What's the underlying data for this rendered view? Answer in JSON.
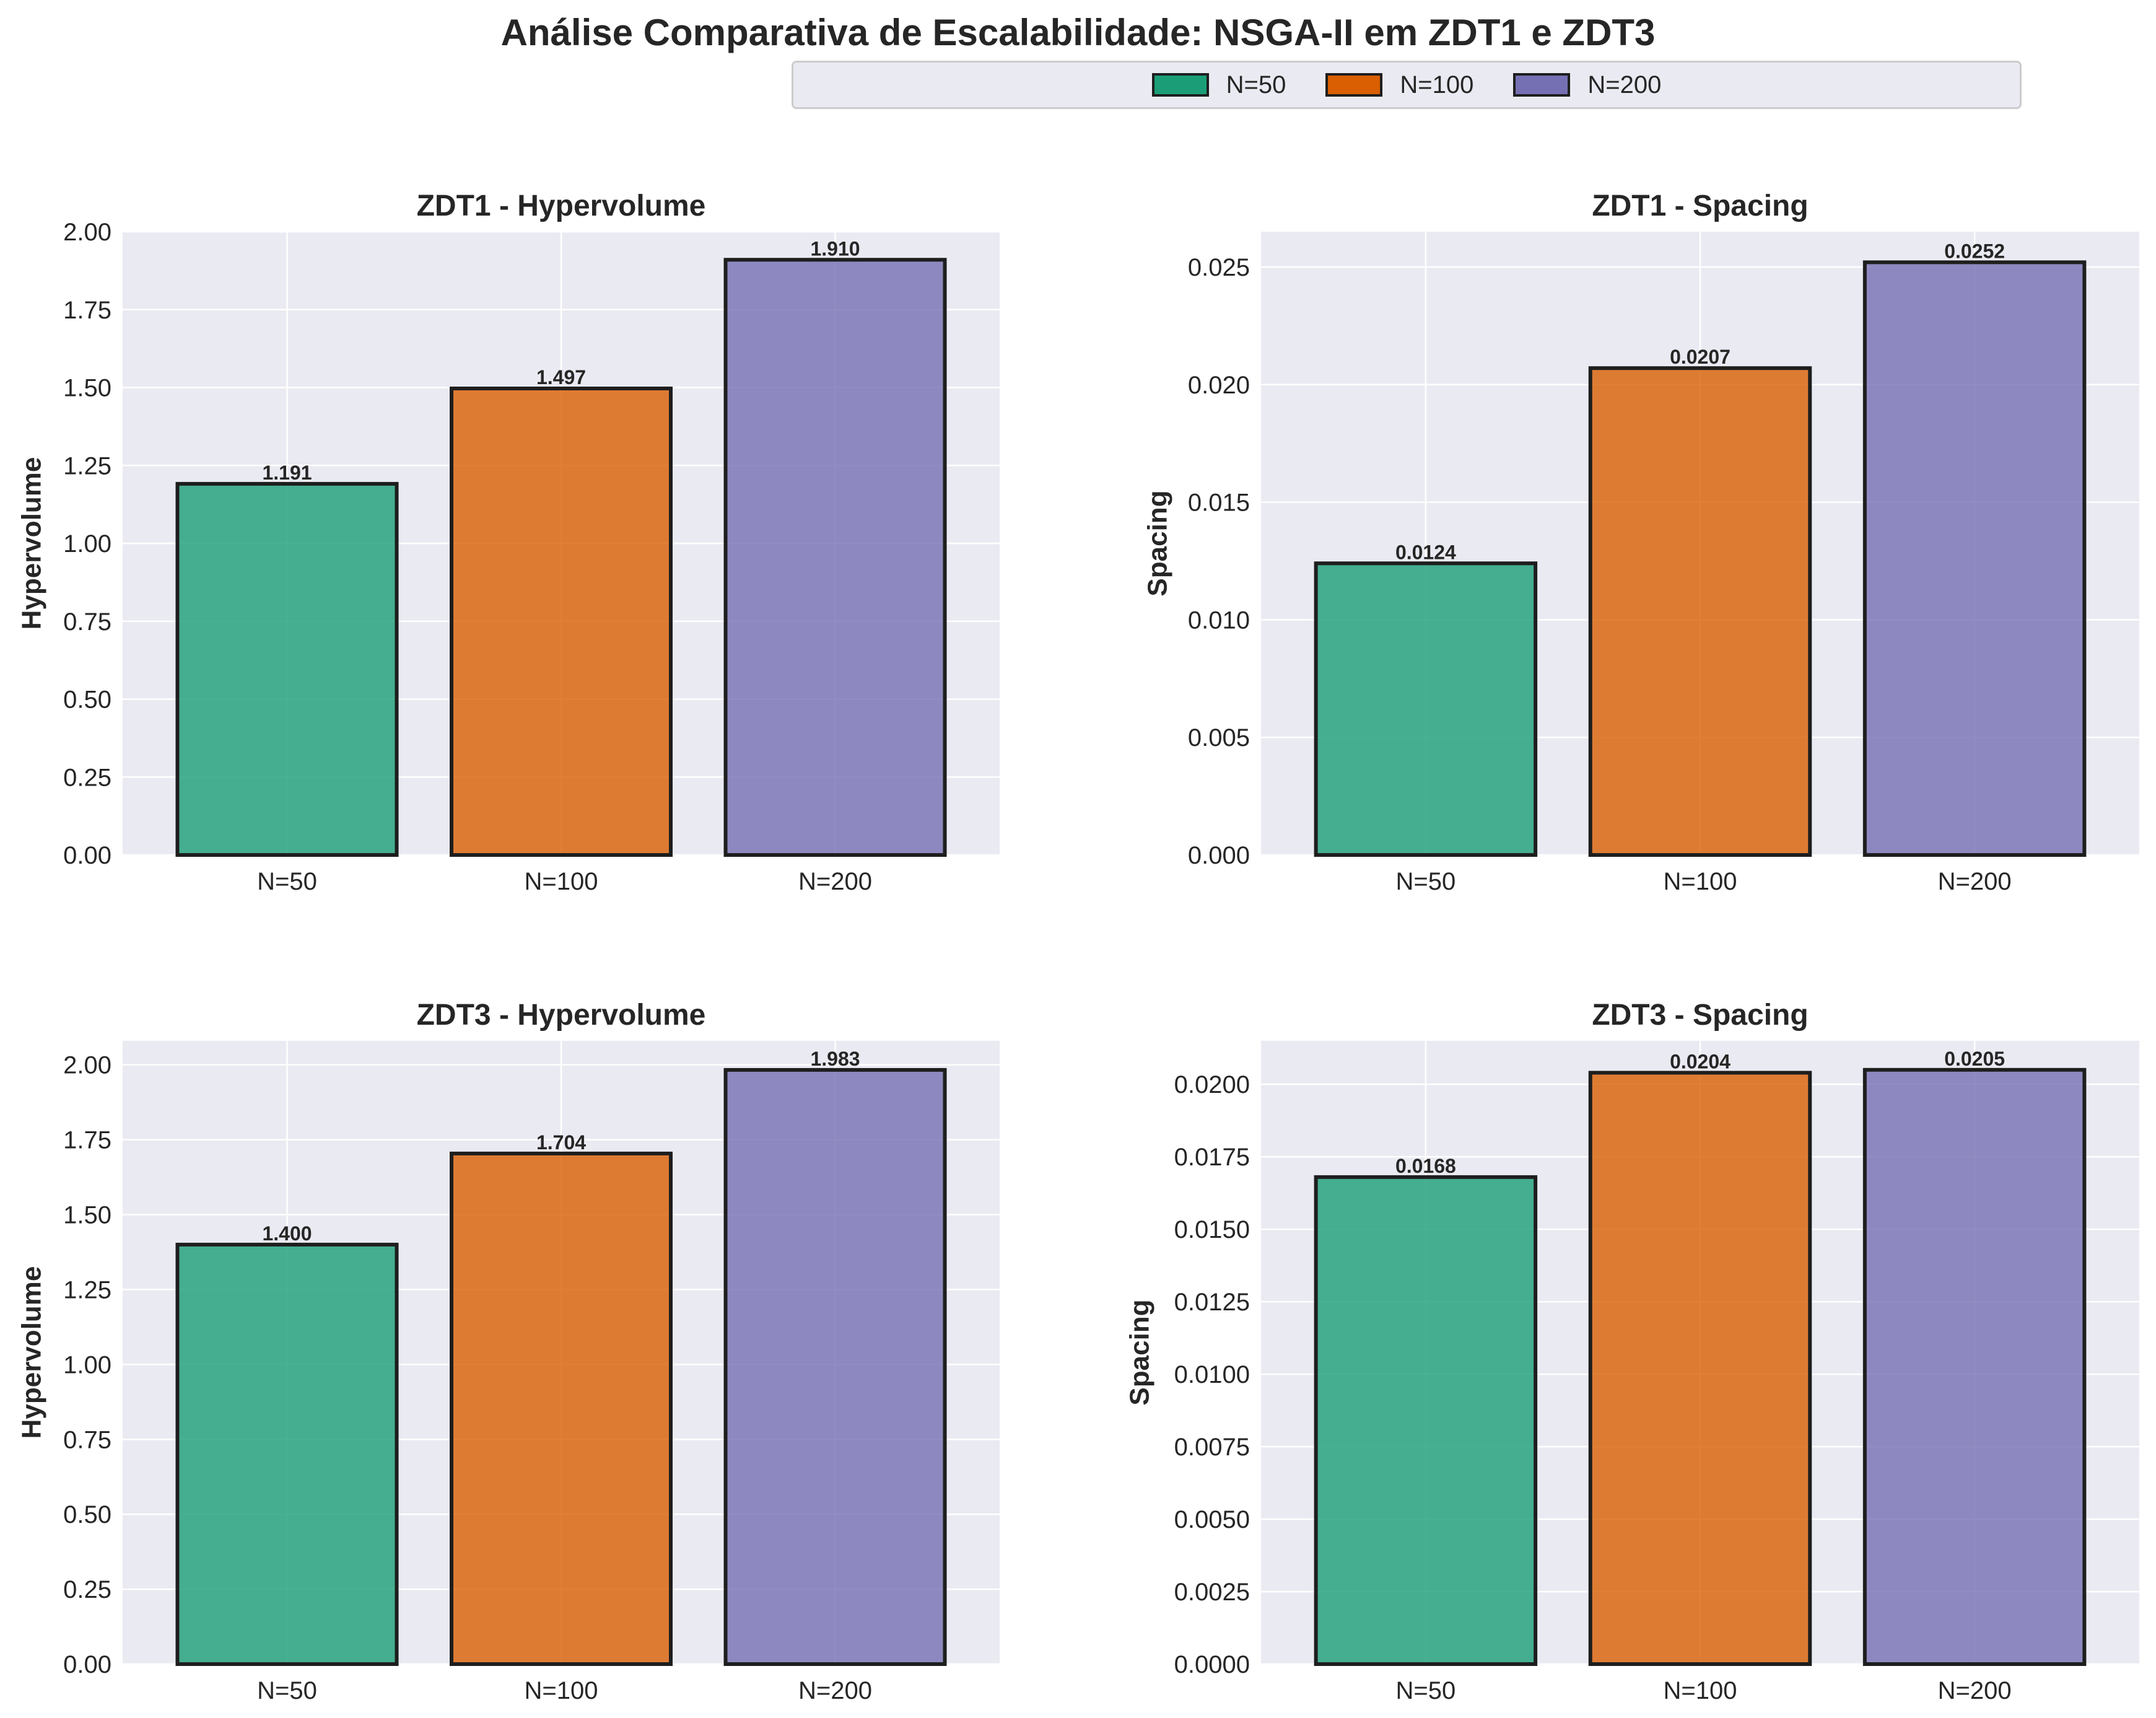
{
  "figure": {
    "title": "Análise Comparativa de Escalabilidade: NSGA-II em ZDT1 e ZDT3"
  },
  "legend": {
    "placement": "upper-center",
    "items": [
      {
        "label": "N=50",
        "color": "#1b9e77"
      },
      {
        "label": "N=100",
        "color": "#d95f02"
      },
      {
        "label": "N=200",
        "color": "#7570b3"
      }
    ]
  },
  "chart_data": [
    {
      "type": "bar",
      "title": "ZDT1 - Hypervolume",
      "ylabel": "Hypervolume",
      "xlabel": "",
      "categories": [
        "N=50",
        "N=100",
        "N=200"
      ],
      "values": [
        1.191,
        1.497,
        1.91
      ],
      "value_labels": [
        "1.191",
        "1.497",
        "1.910"
      ],
      "ylim": [
        0,
        2.0
      ],
      "yticks": [
        0,
        0.25,
        0.5,
        0.75,
        1.0,
        1.25,
        1.5,
        1.75,
        2.0
      ],
      "ytick_labels": [
        "0.00",
        "0.25",
        "0.50",
        "0.75",
        "1.00",
        "1.25",
        "1.50",
        "1.75",
        "2.00"
      ],
      "grid": true
    },
    {
      "type": "bar",
      "title": "ZDT1 - Spacing",
      "ylabel": "Spacing",
      "xlabel": "",
      "categories": [
        "N=50",
        "N=100",
        "N=200"
      ],
      "values": [
        0.0124,
        0.0207,
        0.0252
      ],
      "value_labels": [
        "0.0124",
        "0.0207",
        "0.0252"
      ],
      "ylim": [
        0,
        0.0265
      ],
      "yticks": [
        0,
        0.005,
        0.01,
        0.015,
        0.02,
        0.025
      ],
      "ytick_labels": [
        "0.000",
        "0.005",
        "0.010",
        "0.015",
        "0.020",
        "0.025"
      ],
      "grid": true
    },
    {
      "type": "bar",
      "title": "ZDT3 - Hypervolume",
      "ylabel": "Hypervolume",
      "xlabel": "",
      "categories": [
        "N=50",
        "N=100",
        "N=200"
      ],
      "values": [
        1.4,
        1.704,
        1.983
      ],
      "value_labels": [
        "1.400",
        "1.704",
        "1.983"
      ],
      "ylim": [
        0,
        2.08
      ],
      "yticks": [
        0,
        0.25,
        0.5,
        0.75,
        1.0,
        1.25,
        1.5,
        1.75,
        2.0
      ],
      "ytick_labels": [
        "0.00",
        "0.25",
        "0.50",
        "0.75",
        "1.00",
        "1.25",
        "1.50",
        "1.75",
        "2.00"
      ],
      "grid": true
    },
    {
      "type": "bar",
      "title": "ZDT3 - Spacing",
      "ylabel": "Spacing",
      "xlabel": "",
      "categories": [
        "N=50",
        "N=100",
        "N=200"
      ],
      "values": [
        0.0168,
        0.0204,
        0.0205
      ],
      "value_labels": [
        "0.0168",
        "0.0204",
        "0.0205"
      ],
      "ylim": [
        0,
        0.0215
      ],
      "yticks": [
        0,
        0.0025,
        0.005,
        0.0075,
        0.01,
        0.0125,
        0.015,
        0.0175,
        0.02
      ],
      "ytick_labels": [
        "0.0000",
        "0.0025",
        "0.0050",
        "0.0075",
        "0.0100",
        "0.0125",
        "0.0150",
        "0.0175",
        "0.0200"
      ],
      "grid": true
    }
  ]
}
